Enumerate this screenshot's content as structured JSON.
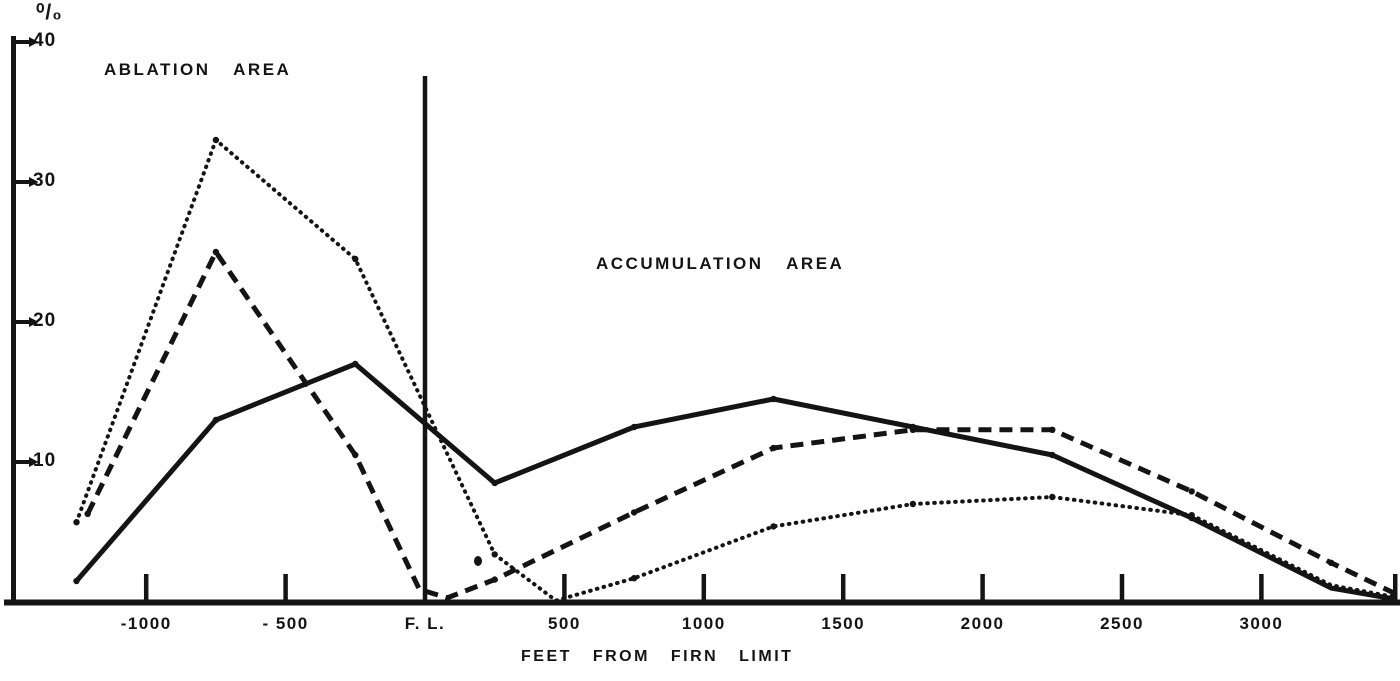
{
  "figure": {
    "background": "#ffffff",
    "ink": "#141414"
  },
  "chart_data": {
    "type": "line",
    "title": "",
    "xlabel": "FEET FROM FIRN LIMIT",
    "ylabel": "%",
    "ylabel_display": "⁰/₀",
    "xlim": [
      -1460,
      3494
    ],
    "ylim": [
      0,
      40
    ],
    "grid": false,
    "legend": "none",
    "annotations": {
      "ablation": "ABLATION AREA",
      "accumulation": "ACCUMULATION AREA"
    },
    "firn_limit": {
      "ft": 0,
      "label": "F. L."
    },
    "y_ticks": [
      {
        "value": 40,
        "label": "40"
      },
      {
        "value": 30,
        "label": "30"
      },
      {
        "value": 20,
        "label": "20"
      },
      {
        "value": 10,
        "label": "10"
      }
    ],
    "x_tick_lines": [
      -1000,
      -500,
      500,
      1000,
      1500,
      2000,
      2500,
      3000,
      3480
    ],
    "x_tick_labels": [
      {
        "ft": -1000,
        "label": "-1000"
      },
      {
        "ft": -500,
        "label": "- 500"
      },
      {
        "ft": 0,
        "label": "F. L."
      },
      {
        "ft": 500,
        "label": "500"
      },
      {
        "ft": 1000,
        "label": "1000"
      },
      {
        "ft": 1500,
        "label": "1500"
      },
      {
        "ft": 2000,
        "label": "2000"
      },
      {
        "ft": 2500,
        "label": "2500"
      },
      {
        "ft": 3000,
        "label": "3000"
      }
    ],
    "series": [
      {
        "name": "solid-curve",
        "style": "solid",
        "points": [
          [
            -1250,
            1.5
          ],
          [
            -750,
            13
          ],
          [
            -250,
            17
          ],
          [
            250,
            8.5
          ],
          [
            750,
            12.5
          ],
          [
            1250,
            14.5
          ],
          [
            1750,
            12.5
          ],
          [
            2250,
            10.5
          ],
          [
            2750,
            6
          ],
          [
            3250,
            1
          ],
          [
            3480,
            0.2
          ]
        ]
      },
      {
        "name": "dashed-curve",
        "style": "dashed",
        "points": [
          [
            -1210,
            6.3
          ],
          [
            -750,
            25
          ],
          [
            -250,
            10.5
          ],
          [
            -20,
            0.9
          ],
          [
            80,
            0.3
          ],
          [
            250,
            1.6
          ],
          [
            750,
            6.4
          ],
          [
            1250,
            11
          ],
          [
            1750,
            12.3
          ],
          [
            2250,
            12.3
          ],
          [
            2750,
            7.9
          ],
          [
            3250,
            2.8
          ],
          [
            3480,
            0.6
          ]
        ]
      },
      {
        "name": "dotted-curve",
        "style": "dotted",
        "points": [
          [
            -1250,
            5.7
          ],
          [
            -750,
            33
          ],
          [
            -250,
            24.5
          ],
          [
            250,
            3.4
          ],
          [
            470,
            0.1
          ],
          [
            750,
            1.7
          ],
          [
            1250,
            5.4
          ],
          [
            1750,
            7
          ],
          [
            2250,
            7.5
          ],
          [
            2750,
            6.2
          ],
          [
            3250,
            1.2
          ],
          [
            3480,
            0.35
          ]
        ]
      }
    ]
  }
}
